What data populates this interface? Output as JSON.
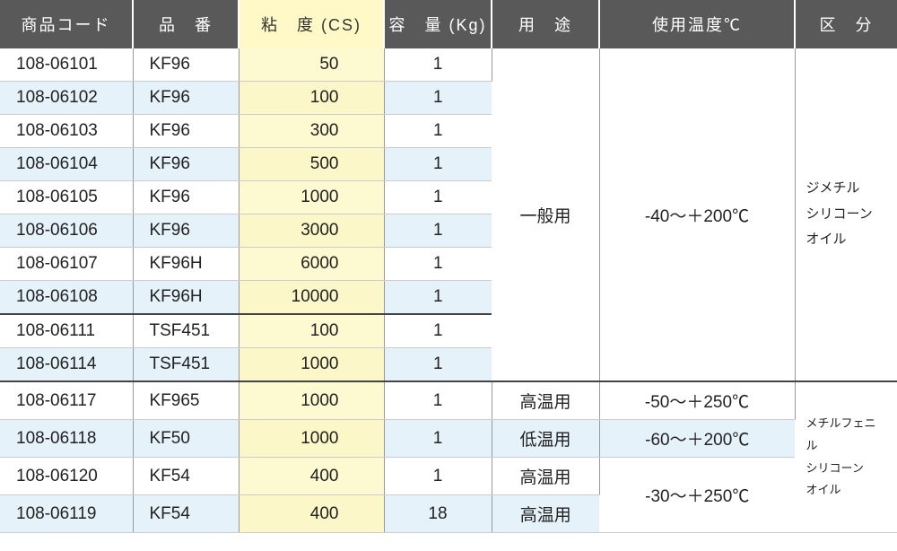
{
  "headers": {
    "code": "商品コード",
    "model": "品　番",
    "viscosity": "粘　度 (CS)",
    "capacity": "容　量 (Kg)",
    "use": "用　途",
    "temp": "使用温度℃",
    "category": "区　分"
  },
  "rows": [
    {
      "code": "108-06101",
      "model": "KF96",
      "visc": "50",
      "cap": "1"
    },
    {
      "code": "108-06102",
      "model": "KF96",
      "visc": "100",
      "cap": "1"
    },
    {
      "code": "108-06103",
      "model": "KF96",
      "visc": "300",
      "cap": "1"
    },
    {
      "code": "108-06104",
      "model": "KF96",
      "visc": "500",
      "cap": "1"
    },
    {
      "code": "108-06105",
      "model": "KF96",
      "visc": "1000",
      "cap": "1"
    },
    {
      "code": "108-06106",
      "model": "KF96",
      "visc": "3000",
      "cap": "1"
    },
    {
      "code": "108-06107",
      "model": "KF96H",
      "visc": "6000",
      "cap": "1"
    },
    {
      "code": "108-06108",
      "model": "KF96H",
      "visc": "10000",
      "cap": "1"
    },
    {
      "code": "108-06111",
      "model": "TSF451",
      "visc": "100",
      "cap": "1"
    },
    {
      "code": "108-06114",
      "model": "TSF451",
      "visc": "1000",
      "cap": "1"
    },
    {
      "code": "108-06117",
      "model": "KF965",
      "visc": "1000",
      "cap": "1",
      "use": "高温用",
      "temp": "-50～＋250℃"
    },
    {
      "code": "108-06118",
      "model": "KF50",
      "visc": "1000",
      "cap": "1",
      "use": "低温用",
      "temp": "-60～＋200℃"
    },
    {
      "code": "108-06120",
      "model": "KF54",
      "visc": "400",
      "cap": "1",
      "use": "高温用"
    },
    {
      "code": "108-06119",
      "model": "KF54",
      "visc": "400",
      "cap": "18",
      "use": "高温用"
    }
  ],
  "merged": {
    "use_general": "一般用",
    "temp_general": "-40～＋200℃",
    "temp_last": "-30～＋250℃",
    "cat_dimethyl": "ジメチル\nシリコーン\nオイル",
    "cat_methylphenyl": "メチルフェニル\nシリコーン\nオイル"
  },
  "colors": {
    "header_bg": "#595959",
    "header_fg": "#ffffff",
    "highlight_header_bg": "#fef9c6",
    "visc_bg": "#fdf9d0",
    "alt_bg": "#e5f2fa",
    "border": "#999999"
  }
}
